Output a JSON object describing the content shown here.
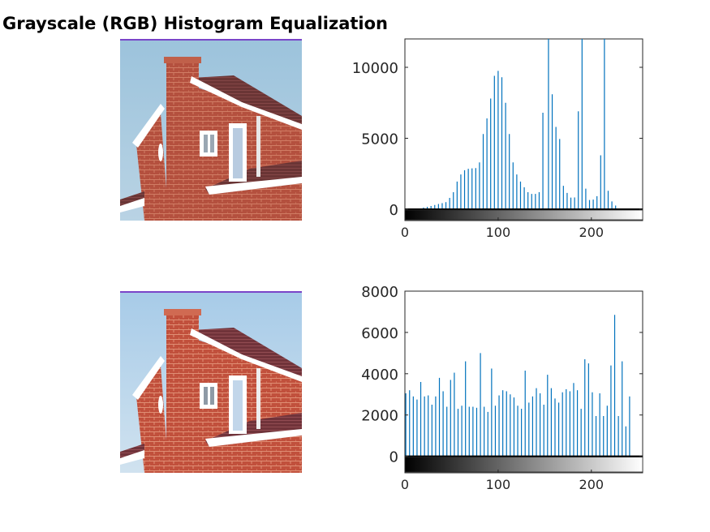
{
  "figure": {
    "title": "Grayscale (RGB) Histogram Equalization"
  },
  "images": [
    {
      "name": "original-house-photo"
    },
    {
      "name": "equalized-house-photo"
    }
  ],
  "colors": {
    "stem": "#0072BD",
    "axes": "#262626"
  },
  "chart_data": [
    {
      "type": "bar",
      "xlim": [
        0,
        255
      ],
      "ylim": [
        -800,
        12000
      ],
      "xticks": [
        0,
        100,
        200
      ],
      "yticks": [
        0,
        5000,
        10000
      ],
      "xtick_labels": [
        "0",
        "100",
        "200"
      ],
      "ytick_labels": [
        "0",
        "5000",
        "10000"
      ],
      "grid": false,
      "colorbar": "grayscale 0-255",
      "points": [
        [
          20,
          120
        ],
        [
          24,
          170
        ],
        [
          28,
          230
        ],
        [
          32,
          300
        ],
        [
          36,
          370
        ],
        [
          40,
          430
        ],
        [
          44,
          500
        ],
        [
          48,
          800
        ],
        [
          52,
          1200
        ],
        [
          56,
          1950
        ],
        [
          60,
          2450
        ],
        [
          64,
          2750
        ],
        [
          68,
          2850
        ],
        [
          72,
          2880
        ],
        [
          76,
          2900
        ],
        [
          80,
          3300
        ],
        [
          84,
          5300
        ],
        [
          88,
          6400
        ],
        [
          92,
          7800
        ],
        [
          96,
          9400
        ],
        [
          100,
          9750
        ],
        [
          104,
          9300
        ],
        [
          108,
          7500
        ],
        [
          112,
          5300
        ],
        [
          116,
          3300
        ],
        [
          120,
          2450
        ],
        [
          124,
          1950
        ],
        [
          128,
          1550
        ],
        [
          132,
          1200
        ],
        [
          136,
          1080
        ],
        [
          140,
          1080
        ],
        [
          144,
          1200
        ],
        [
          148,
          6800
        ],
        [
          154,
          12000
        ],
        [
          158,
          8100
        ],
        [
          162,
          5800
        ],
        [
          166,
          4950
        ],
        [
          170,
          1650
        ],
        [
          174,
          1150
        ],
        [
          178,
          820
        ],
        [
          182,
          830
        ],
        [
          186,
          6900
        ],
        [
          190,
          12000
        ],
        [
          194,
          1450
        ],
        [
          198,
          650
        ],
        [
          202,
          680
        ],
        [
          206,
          920
        ],
        [
          210,
          3800
        ],
        [
          214,
          12000
        ],
        [
          218,
          1300
        ],
        [
          222,
          550
        ],
        [
          226,
          260
        ]
      ]
    },
    {
      "type": "bar",
      "xlim": [
        0,
        255
      ],
      "ylim": [
        -800,
        8000
      ],
      "xticks": [
        0,
        100,
        200
      ],
      "yticks": [
        0,
        2000,
        4000,
        6000,
        8000
      ],
      "xtick_labels": [
        "0",
        "100",
        "200"
      ],
      "ytick_labels": [
        "0",
        "2000",
        "4000",
        "6000",
        "8000"
      ],
      "grid": false,
      "colorbar": "grayscale 0-255",
      "points": [
        [
          1,
          3050
        ],
        [
          5,
          3200
        ],
        [
          9,
          2900
        ],
        [
          13,
          2750
        ],
        [
          17,
          3600
        ],
        [
          21,
          2900
        ],
        [
          25,
          2950
        ],
        [
          29,
          2500
        ],
        [
          33,
          2900
        ],
        [
          37,
          3800
        ],
        [
          41,
          3150
        ],
        [
          45,
          2400
        ],
        [
          49,
          3700
        ],
        [
          53,
          4050
        ],
        [
          57,
          2300
        ],
        [
          61,
          2450
        ],
        [
          65,
          4600
        ],
        [
          69,
          2400
        ],
        [
          73,
          2400
        ],
        [
          77,
          2350
        ],
        [
          81,
          5000
        ],
        [
          85,
          2400
        ],
        [
          89,
          2150
        ],
        [
          93,
          4250
        ],
        [
          97,
          2450
        ],
        [
          101,
          2950
        ],
        [
          105,
          3200
        ],
        [
          109,
          3150
        ],
        [
          113,
          3000
        ],
        [
          117,
          2850
        ],
        [
          121,
          2450
        ],
        [
          125,
          2300
        ],
        [
          129,
          4150
        ],
        [
          133,
          2600
        ],
        [
          137,
          2900
        ],
        [
          141,
          3300
        ],
        [
          145,
          3050
        ],
        [
          149,
          2500
        ],
        [
          153,
          3950
        ],
        [
          157,
          3300
        ],
        [
          161,
          2800
        ],
        [
          165,
          2600
        ],
        [
          169,
          3100
        ],
        [
          173,
          3250
        ],
        [
          177,
          3150
        ],
        [
          181,
          3550
        ],
        [
          185,
          3200
        ],
        [
          189,
          2300
        ],
        [
          193,
          4700
        ],
        [
          197,
          4500
        ],
        [
          201,
          3100
        ],
        [
          205,
          1950
        ],
        [
          209,
          3050
        ],
        [
          213,
          1950
        ],
        [
          217,
          2450
        ],
        [
          221,
          4400
        ],
        [
          225,
          6850
        ],
        [
          229,
          1950
        ],
        [
          233,
          4600
        ],
        [
          237,
          1450
        ],
        [
          241,
          2900
        ]
      ]
    }
  ]
}
